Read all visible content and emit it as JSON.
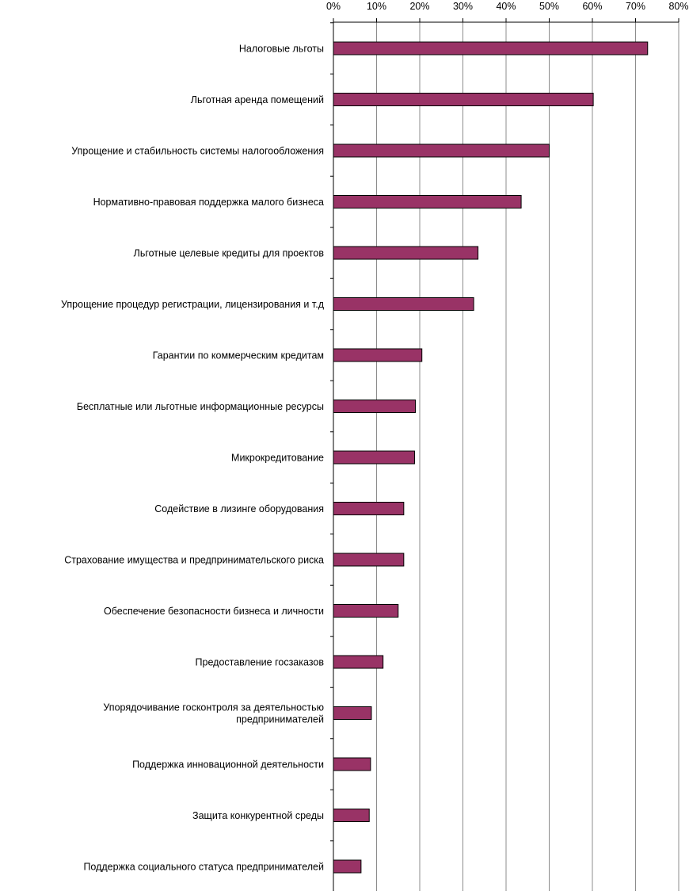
{
  "chart_data": {
    "type": "bar",
    "orientation": "horizontal",
    "title": "",
    "xlabel": "",
    "ylabel": "",
    "xlim": [
      0,
      80
    ],
    "x_ticks": [
      0,
      10,
      20,
      30,
      40,
      50,
      60,
      70,
      80
    ],
    "x_tick_labels": [
      "0%",
      "10%",
      "20%",
      "30%",
      "40%",
      "50%",
      "60%",
      "70%",
      "80%"
    ],
    "x_axis_position": "top",
    "grid": "vertical",
    "legend": "none",
    "bar_color": "#993366",
    "categories": [
      "Налоговые льготы",
      "Льготная аренда помещений",
      "Упрощение и стабильность системы налогообложения",
      "Нормативно-правовая поддержка малого бизнеса",
      "Льготные целевые кредиты для проектов",
      "Упрощение процедур регистрации, лицензирования и т.д",
      "Гарантии по коммерческим кредитам",
      "Бесплатные или льготные информационные ресурсы",
      "Микрокредитование",
      "Содействие в лизинге оборудования",
      "Страхование имущества и предпринимательского риска",
      "Обеспечение безопасности бизнеса и личности",
      "Предоставление госзаказов",
      "Упорядочивание госконтроля за деятельностью предпринимателей",
      "Поддержка инновационной деятельности",
      "Защита конкурентной среды",
      "Поддержка социального статуса предпринимателей"
    ],
    "category_lines": [
      [
        "Налоговые льготы"
      ],
      [
        "Льготная аренда помещений"
      ],
      [
        "Упрощение и стабильность системы налогообложения"
      ],
      [
        "Нормативно-правовая поддержка малого бизнеса"
      ],
      [
        "Льготные целевые кредиты для проектов"
      ],
      [
        "Упрощение процедур регистрации, лицензирования и т.д"
      ],
      [
        "Гарантии по коммерческим кредитам"
      ],
      [
        "Бесплатные или льготные информационные ресурсы"
      ],
      [
        "Микрокредитование"
      ],
      [
        "Содействие в лизинге оборудования"
      ],
      [
        "Страхование имущества и предпринимательского риска"
      ],
      [
        "Обеспечение безопасности бизнеса и личности"
      ],
      [
        "Предоставление госзаказов"
      ],
      [
        "Упорядочивание госконтроля за деятельностью",
        "предпринимателей"
      ],
      [
        "Поддержка инновационной деятельности"
      ],
      [
        "Защита конкурентной среды"
      ],
      [
        "Поддержка социального статуса предпринимателей"
      ]
    ],
    "values": [
      72.8,
      60.2,
      50.0,
      43.5,
      33.5,
      32.5,
      20.5,
      19.0,
      18.8,
      16.3,
      16.3,
      15.0,
      11.5,
      8.8,
      8.6,
      8.3,
      6.4
    ]
  }
}
